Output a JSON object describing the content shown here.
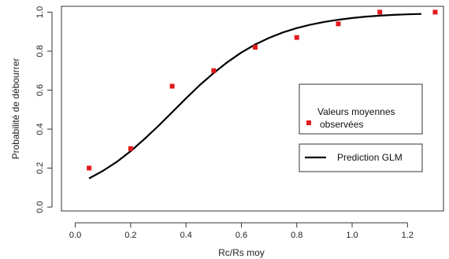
{
  "chart_data": {
    "type": "scatter",
    "xlabel": "Rc/Rs moy",
    "ylabel": "Probabilité de débourrer",
    "xlim": [
      -0.05,
      1.33
    ],
    "ylim": [
      -0.02,
      1.03
    ],
    "x_ticks": [
      "0.0",
      "0.2",
      "0.4",
      "0.6",
      "0.8",
      "1.0",
      "1.2"
    ],
    "y_ticks": [
      "0.0",
      "0.2",
      "0.4",
      "0.6",
      "0.8",
      "1.0"
    ],
    "grid": false,
    "legend_position": "middle-right",
    "series": [
      {
        "name": "Valeurs moyennes observées",
        "name_lines": [
          "Valeurs moyennes",
          "observées"
        ],
        "kind": "points",
        "color": "#e31a1c",
        "marker": "square",
        "x": [
          0.05,
          0.2,
          0.35,
          0.5,
          0.65,
          0.8,
          0.95,
          1.1,
          1.3
        ],
        "y": [
          0.2,
          0.3,
          0.62,
          0.7,
          0.82,
          0.87,
          0.94,
          1.0,
          1.0
        ]
      },
      {
        "name": "Prediction GLM",
        "kind": "line",
        "color": "#000000",
        "x": [
          0.05,
          0.1,
          0.15,
          0.2,
          0.25,
          0.3,
          0.35,
          0.4,
          0.45,
          0.5,
          0.55,
          0.6,
          0.65,
          0.7,
          0.75,
          0.8,
          0.85,
          0.9,
          0.95,
          1.0,
          1.05,
          1.1,
          1.15,
          1.2,
          1.25
        ],
        "y": [
          0.147,
          0.186,
          0.232,
          0.287,
          0.349,
          0.416,
          0.487,
          0.558,
          0.626,
          0.688,
          0.744,
          0.793,
          0.834,
          0.868,
          0.896,
          0.918,
          0.936,
          0.95,
          0.961,
          0.97,
          0.977,
          0.982,
          0.986,
          0.989,
          0.991
        ]
      }
    ]
  }
}
